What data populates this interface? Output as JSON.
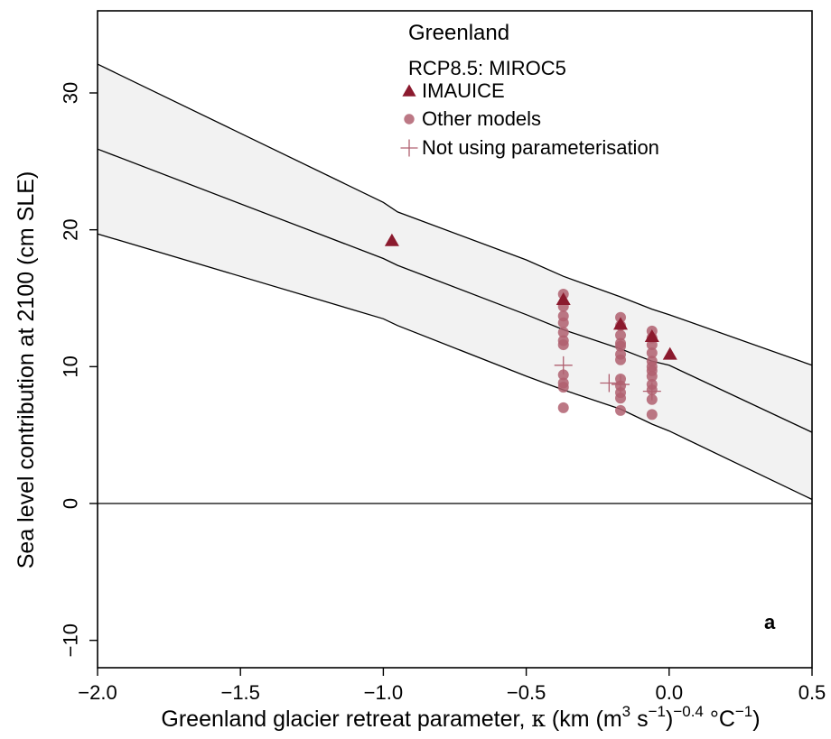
{
  "chart_data": {
    "type": "scatter",
    "title": "",
    "xlabel": "Greenland glacier retreat parameter, κ (km (m³ s⁻¹)⁻⁰·⁴ °C⁻¹)",
    "xlabel_parts": {
      "main": "Greenland glacier retreat parameter, ",
      "kappa": "κ",
      "unit_a": " (km (m",
      "sup1": "3",
      "unit_b": " s",
      "sup2": "−1",
      "unit_c": ")",
      "sup3": "−0.4",
      "unit_d": " °C",
      "sup4": "−1",
      "unit_e": ")"
    },
    "ylabel": "Sea level contribution at 2100 (cm SLE)",
    "xlim": [
      -2.0,
      0.5
    ],
    "ylim": [
      -12.0,
      36.0
    ],
    "x_ticks": [
      -2.0,
      -1.5,
      -1.0,
      -0.5,
      0.0,
      0.5
    ],
    "x_tick_labels": [
      "−2.0",
      "−1.5",
      "−1.0",
      "−0.5",
      "0.0",
      "0.5"
    ],
    "y_ticks": [
      -10,
      0,
      10,
      20,
      30
    ],
    "y_tick_labels": [
      "−10",
      "0",
      "10",
      "20",
      "30"
    ],
    "legend": {
      "placement": "top-center",
      "title": "Greenland",
      "subtitle": "RCP8.5: MIROC5",
      "entries": [
        {
          "label": "IMAUICE",
          "marker": "triangle"
        },
        {
          "label": "Other models",
          "marker": "circle"
        },
        {
          "label": "Not using parameterisation",
          "marker": "plus"
        }
      ]
    },
    "panel_label": "a",
    "zero_line": 0,
    "colors": {
      "triangle": "#8b1a2e",
      "circle": "#b06070",
      "plus": "#b06070",
      "band_fill": "#f2f2f2",
      "line": "#000000"
    },
    "band": {
      "x": [
        -2.0,
        -1.0,
        -0.95,
        -0.5,
        -0.37,
        -0.17,
        -0.06,
        0.0,
        0.5
      ],
      "upper": [
        32.1,
        22.0,
        21.3,
        17.8,
        16.6,
        15.1,
        14.2,
        13.8,
        10.1
      ],
      "median": [
        25.9,
        17.9,
        17.4,
        13.8,
        12.7,
        11.3,
        10.4,
        10.1,
        5.2
      ],
      "lower": [
        19.7,
        13.5,
        13.0,
        9.3,
        8.3,
        6.9,
        5.8,
        5.3,
        0.3
      ]
    },
    "series": [
      {
        "marker": "triangle",
        "points": [
          {
            "x": -0.97,
            "y": 19.2
          },
          {
            "x": -0.37,
            "y": 14.9
          },
          {
            "x": -0.17,
            "y": 13.1
          },
          {
            "x": -0.06,
            "y": 12.2
          },
          {
            "x": 0.003,
            "y": 10.9
          }
        ]
      },
      {
        "marker": "circle",
        "points": [
          {
            "x": -0.37,
            "y": 15.3
          },
          {
            "x": -0.37,
            "y": 14.4
          },
          {
            "x": -0.37,
            "y": 13.7
          },
          {
            "x": -0.37,
            "y": 13.2
          },
          {
            "x": -0.37,
            "y": 12.5
          },
          {
            "x": -0.37,
            "y": 11.9
          },
          {
            "x": -0.37,
            "y": 11.6
          },
          {
            "x": -0.37,
            "y": 9.4
          },
          {
            "x": -0.37,
            "y": 8.8
          },
          {
            "x": -0.37,
            "y": 8.5
          },
          {
            "x": -0.37,
            "y": 7.0
          },
          {
            "x": -0.17,
            "y": 13.6
          },
          {
            "x": -0.17,
            "y": 13.0
          },
          {
            "x": -0.17,
            "y": 12.3
          },
          {
            "x": -0.17,
            "y": 11.7
          },
          {
            "x": -0.17,
            "y": 11.5
          },
          {
            "x": -0.17,
            "y": 10.9
          },
          {
            "x": -0.17,
            "y": 10.5
          },
          {
            "x": -0.17,
            "y": 9.1
          },
          {
            "x": -0.17,
            "y": 8.6
          },
          {
            "x": -0.17,
            "y": 8.1
          },
          {
            "x": -0.17,
            "y": 7.7
          },
          {
            "x": -0.17,
            "y": 6.8
          },
          {
            "x": -0.06,
            "y": 12.6
          },
          {
            "x": -0.06,
            "y": 12.1
          },
          {
            "x": -0.06,
            "y": 11.6
          },
          {
            "x": -0.06,
            "y": 11.0
          },
          {
            "x": -0.06,
            "y": 10.4
          },
          {
            "x": -0.06,
            "y": 10.0
          },
          {
            "x": -0.06,
            "y": 9.7
          },
          {
            "x": -0.06,
            "y": 9.3
          },
          {
            "x": -0.06,
            "y": 8.7
          },
          {
            "x": -0.06,
            "y": 8.3
          },
          {
            "x": -0.06,
            "y": 7.6
          },
          {
            "x": -0.06,
            "y": 6.5
          }
        ]
      },
      {
        "marker": "plus",
        "points": [
          {
            "x": -0.37,
            "y": 10.1
          },
          {
            "x": -0.21,
            "y": 8.8
          },
          {
            "x": -0.17,
            "y": 8.7
          },
          {
            "x": -0.06,
            "y": 8.2
          }
        ]
      }
    ]
  }
}
